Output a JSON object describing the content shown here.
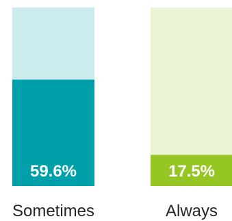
{
  "chart_data": {
    "type": "bar",
    "categories": [
      "Sometimes",
      "Always"
    ],
    "values": [
      59.6,
      17.5
    ],
    "value_labels": [
      "59.6%",
      "17.5%"
    ],
    "ylim": [
      0,
      100
    ],
    "grid": false,
    "legend": "none",
    "colors": {
      "sometimes_fill": "#00A0AA",
      "sometimes_track": "#CCEBED",
      "always_fill": "#95C623",
      "always_track": "#EBF5D5"
    }
  }
}
